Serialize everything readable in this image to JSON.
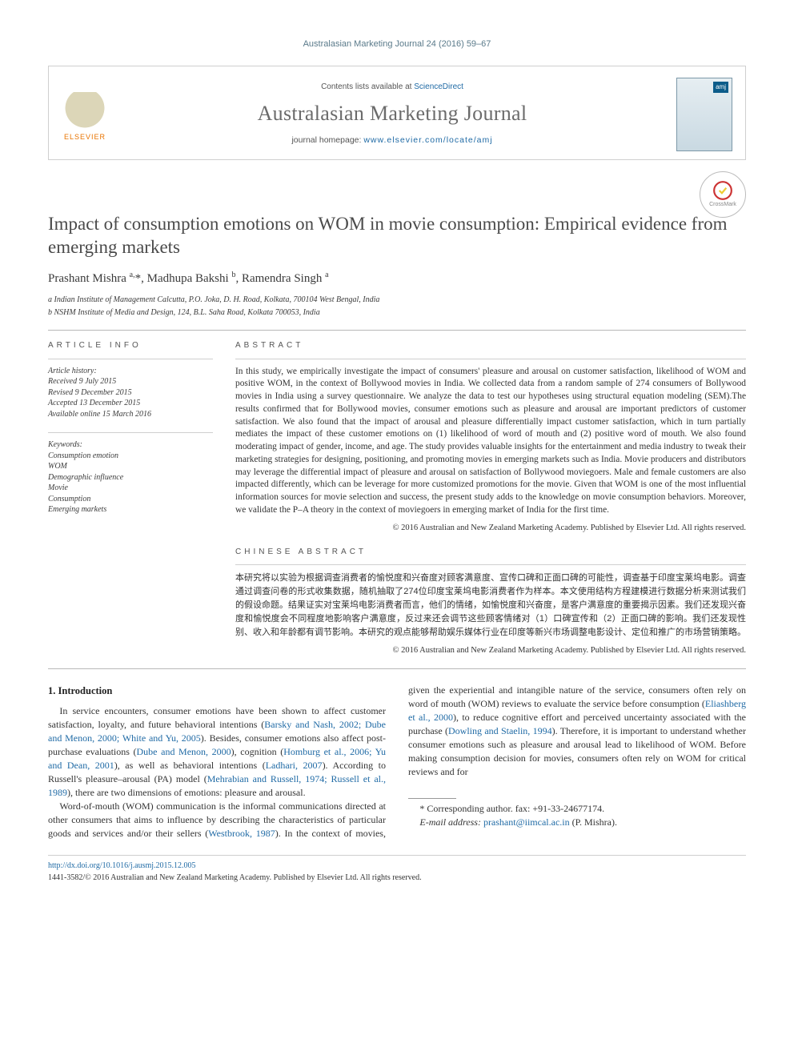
{
  "running_head": "Australasian Marketing Journal 24 (2016) 59–67",
  "masthead": {
    "contents_prefix": "Contents lists available at ",
    "contents_link": "ScienceDirect",
    "journal_name": "Australasian Marketing Journal",
    "homepage_prefix": "journal homepage: ",
    "homepage_link": "www.elsevier.com/locate/amj",
    "publisher_label": "ELSEVIER",
    "cover_tag": "amj"
  },
  "crossmark_label": "CrossMark",
  "article": {
    "title": "Impact of consumption emotions on WOM in movie consumption: Empirical evidence from emerging markets",
    "authors_html": "Prashant Mishra <sup>a,</sup><span class='star'>*</span>, Madhupa Bakshi <sup>b</sup>, Ramendra Singh <sup>a</sup>",
    "affiliations": [
      "a Indian Institute of Management Calcutta, P.O. Joka, D. H. Road, Kolkata, 700104 West Bengal, India",
      "b NSHM Institute of Media and Design, 124, B.L. Saha Road, Kolkata 700053, India"
    ]
  },
  "info": {
    "label": "ARTICLE INFO",
    "history_label": "Article history:",
    "history": [
      "Received 9 July 2015",
      "Revised 9 December 2015",
      "Accepted 13 December 2015",
      "Available online 15 March 2016"
    ],
    "keywords_label": "Keywords:",
    "keywords": [
      "Consumption emotion",
      "WOM",
      "Demographic influence",
      "Movie",
      "Consumption",
      "Emerging markets"
    ]
  },
  "abstract": {
    "label": "ABSTRACT",
    "text": "In this study, we empirically investigate the impact of consumers' pleasure and arousal on customer satisfaction, likelihood of WOM and positive WOM, in the context of Bollywood movies in India. We collected data from a random sample of 274 consumers of Bollywood movies in India using a survey questionnaire. We analyze the data to test our hypotheses using structural equation modeling (SEM).The results confirmed that for Bollywood movies, consumer emotions such as pleasure and arousal are important predictors of customer satisfaction. We also found that the impact of arousal and pleasure differentially impact customer satisfaction, which in turn partially mediates the impact of these customer emotions on (1) likelihood of word of mouth and (2) positive word of mouth. We also found moderating impact of gender, income, and age. The study provides valuable insights for the entertainment and media industry to tweak their marketing strategies for designing, positioning, and promoting movies in emerging markets such as India. Movie producers and distributors may leverage the differential impact of pleasure and arousal on satisfaction of Bollywood moviegoers. Male and female customers are also impacted differently, which can be leverage for more customized promotions for the movie. Given that WOM is one of the most influential information sources for movie selection and success, the present study adds to the knowledge on movie consumption behaviors. Moreover, we validate the P–A theory in the context of moviegoers in emerging market of India for the first time.",
    "copyright": "© 2016 Australian and New Zealand Marketing Academy. Published by Elsevier Ltd. All rights reserved."
  },
  "chinese": {
    "label": "CHINESE ABSTRACT",
    "text": "本研究将以实验为根据调查消费者的愉悦度和兴奋度对顾客满意度、宣传口碑和正面口碑的可能性，调查基于印度宝莱坞电影。调查通过调查问卷的形式收集数据，随机抽取了274位印度宝莱坞电影消费者作为样本。本文使用结构方程建模进行数据分析来测试我们的假设命题。结果证实对宝莱坞电影消费者而言，他们的情绪，如愉悦度和兴奋度，是客户满意度的重要揭示因素。我们还发现兴奋度和愉悦度会不同程度地影响客户满意度，反过来还会调节这些顾客情绪对（1）口碑宣传和（2）正面口碑的影响。我们还发现性别、收入和年龄都有调节影响。本研究的观点能够帮助娱乐媒体行业在印度等新兴市场调整电影设计、定位和推广的市场营销策略。",
    "copyright": "© 2016 Australian and New Zealand Marketing Academy. Published by Elsevier Ltd. All rights reserved."
  },
  "body": {
    "heading": "1. Introduction",
    "para1_pre": "In service encounters, consumer emotions have been shown to affect customer satisfaction, loyalty, and future behavioral intentions (",
    "ref1": "Barsky and Nash, 2002; Dube and Menon, 2000; White and Yu, 2005",
    "para1_mid1": "). Besides, consumer emotions also affect post-purchase evaluations (",
    "ref2": "Dube and Menon, 2000",
    "para1_mid2": "), cognition (",
    "ref3": "Homburg et al., 2006; Yu and Dean, 2001",
    "para1_mid3": "), as well as behavioral intentions (",
    "ref4": "Ladhari, 2007",
    "para1_mid4": "). According to Russell's pleasure–arousal (PA) model (",
    "ref5": "Mehrabian and Russell, 1974; Russell et al., 1989",
    "para1_end": "), there are two dimensions of emotions: pleasure and arousal.",
    "para2_pre": "Word-of-mouth (WOM) communication is the informal communications directed at other consumers that aims to influence by describing the characteristics of particular goods and services and/or their sellers (",
    "ref6": "Westbrook, 1987",
    "para2_mid1": "). In the context of movies, given the experiential and intangible nature of the service, consumers often rely on word of mouth (WOM) reviews to evaluate the service before consumption (",
    "ref7": "Eliashberg et al., 2000",
    "para2_mid2": "), to reduce cognitive effort and perceived uncertainty associated with the purchase (",
    "ref8": "Dowling and Staelin, 1994",
    "para2_end": "). Therefore, it is important to understand whether consumer emotions such as pleasure and arousal lead to likelihood of WOM. Before making consumption decision for movies, consumers often rely on WOM for critical reviews and for"
  },
  "corresponding": {
    "star_line": "* Corresponding author. fax: +91-33-24677174.",
    "email_label": "E-mail address: ",
    "email": "prashant@iimcal.ac.in",
    "email_suffix": " (P. Mishra)."
  },
  "footer": {
    "doi": "http://dx.doi.org/10.1016/j.ausmj.2015.12.005",
    "issn_line": "1441-3582/© 2016 Australian and New Zealand Marketing Academy. Published by Elsevier Ltd. All rights reserved."
  },
  "colors": {
    "link": "#1f6aa5",
    "headgrey": "#5a7a8a",
    "rule": "#b8b8b8",
    "text": "#333333",
    "orange": "#e97400"
  }
}
